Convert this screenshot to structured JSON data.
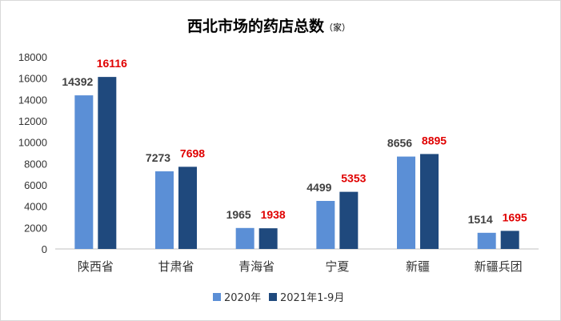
{
  "chart_data": {
    "type": "bar",
    "title": "西北市场的药店总数",
    "unit": "（家）",
    "categories": [
      "陕西省",
      "甘肃省",
      "青海省",
      "宁夏",
      "新疆",
      "新疆兵团"
    ],
    "series": [
      {
        "name": "2020年",
        "values": [
          14392,
          7273,
          1965,
          4499,
          8656,
          1514
        ],
        "color": "#5b8fd6",
        "label_color": "#404040"
      },
      {
        "name": "2021年1-9月",
        "values": [
          16116,
          7698,
          1938,
          5353,
          8895,
          1695
        ],
        "color": "#1f497d",
        "label_color": "#e00000"
      }
    ],
    "yticks": [
      "0",
      "2000",
      "4000",
      "6000",
      "8000",
      "10000",
      "12000",
      "14000",
      "16000",
      "18000"
    ],
    "ylim": [
      0,
      18000
    ],
    "grid": false,
    "legend_position": "bottom"
  }
}
